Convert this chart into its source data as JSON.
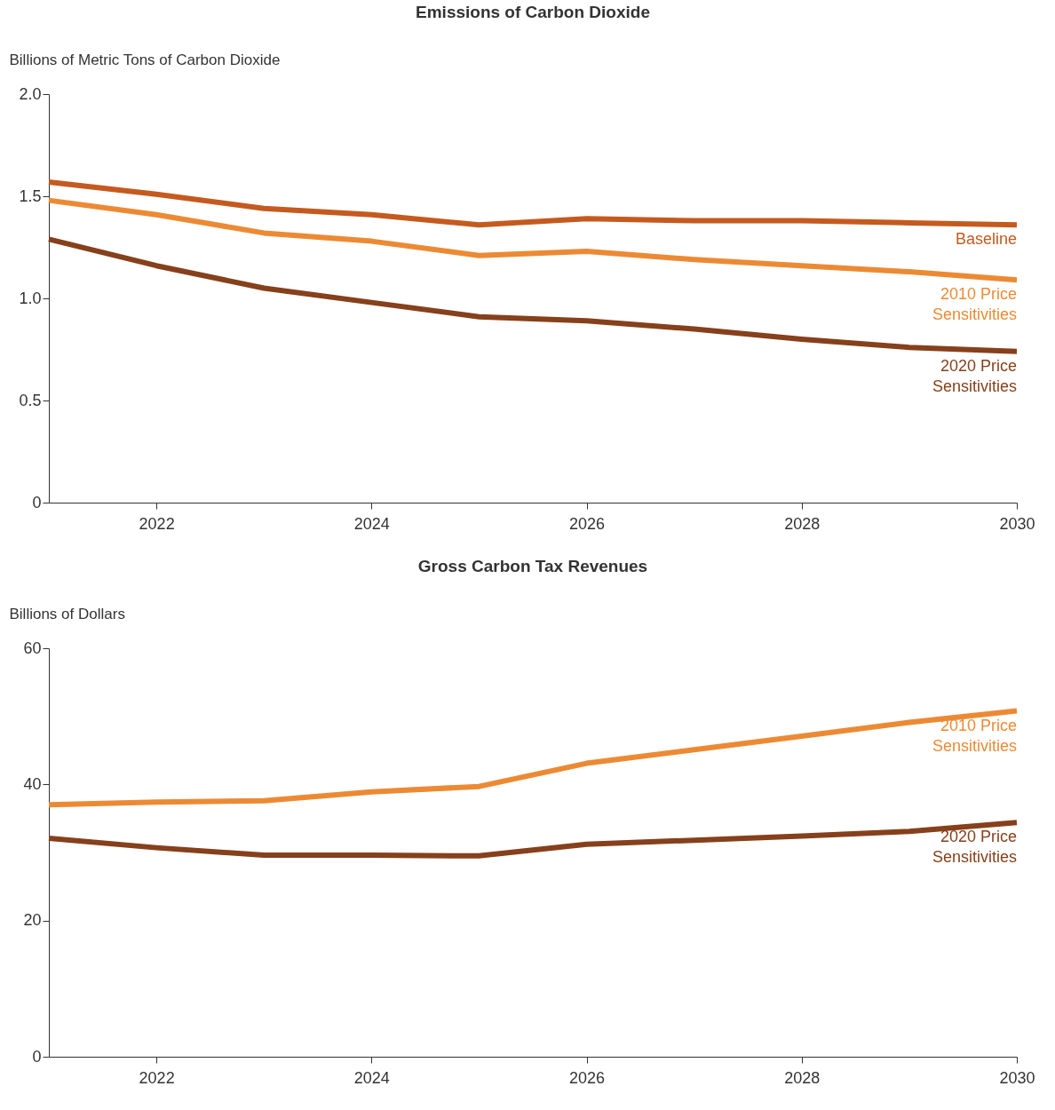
{
  "chart_data": [
    {
      "type": "line",
      "title": "Emissions of Carbon Dioxide",
      "ylabel": "Billions of Metric Tons of Carbon Dioxide",
      "x": [
        2021,
        2022,
        2023,
        2024,
        2025,
        2026,
        2027,
        2028,
        2029,
        2030
      ],
      "xlim": [
        2021,
        2030
      ],
      "xticks": [
        2022,
        2024,
        2026,
        2028,
        2030
      ],
      "ylim": [
        0,
        2
      ],
      "yticks": [
        0,
        0.5,
        {
          "value": 1,
          "label": "1.0"
        },
        1.5,
        {
          "value": 2,
          "label": "2.0"
        }
      ],
      "series": [
        {
          "name": "Baseline",
          "color": "#c55a1f",
          "values": [
            1.57,
            1.51,
            1.44,
            1.41,
            1.36,
            1.39,
            1.38,
            1.38,
            1.37,
            1.36
          ]
        },
        {
          "name": "2010 Price Sensitivities",
          "color": "#ec8a34",
          "values": [
            1.48,
            1.41,
            1.32,
            1.28,
            1.21,
            1.23,
            1.19,
            1.16,
            1.13,
            1.09
          ]
        },
        {
          "name": "2020 Price Sensitivities",
          "color": "#86401b",
          "values": [
            1.29,
            1.16,
            1.05,
            0.98,
            0.91,
            0.89,
            0.85,
            0.8,
            0.76,
            0.74
          ]
        }
      ]
    },
    {
      "type": "line",
      "title": "Gross Carbon Tax Revenues",
      "ylabel": "Billions of Dollars",
      "x": [
        2021,
        2022,
        2023,
        2024,
        2025,
        2026,
        2027,
        2028,
        2029,
        2030
      ],
      "xlim": [
        2021,
        2030
      ],
      "xticks": [
        2022,
        2024,
        2026,
        2028,
        2030
      ],
      "ylim": [
        0,
        60
      ],
      "yticks": [
        0,
        20,
        40,
        60
      ],
      "series": [
        {
          "name": "2010 Price Sensitivities",
          "color": "#ec8a34",
          "values": [
            37.0,
            37.4,
            37.6,
            38.9,
            39.7,
            43.1,
            45.1,
            47.1,
            49.1,
            50.8
          ]
        },
        {
          "name": "2020 Price Sensitivities",
          "color": "#86401b",
          "values": [
            32.1,
            30.7,
            29.6,
            29.6,
            29.5,
            31.2,
            31.8,
            32.4,
            33.1,
            34.4
          ]
        }
      ]
    }
  ]
}
